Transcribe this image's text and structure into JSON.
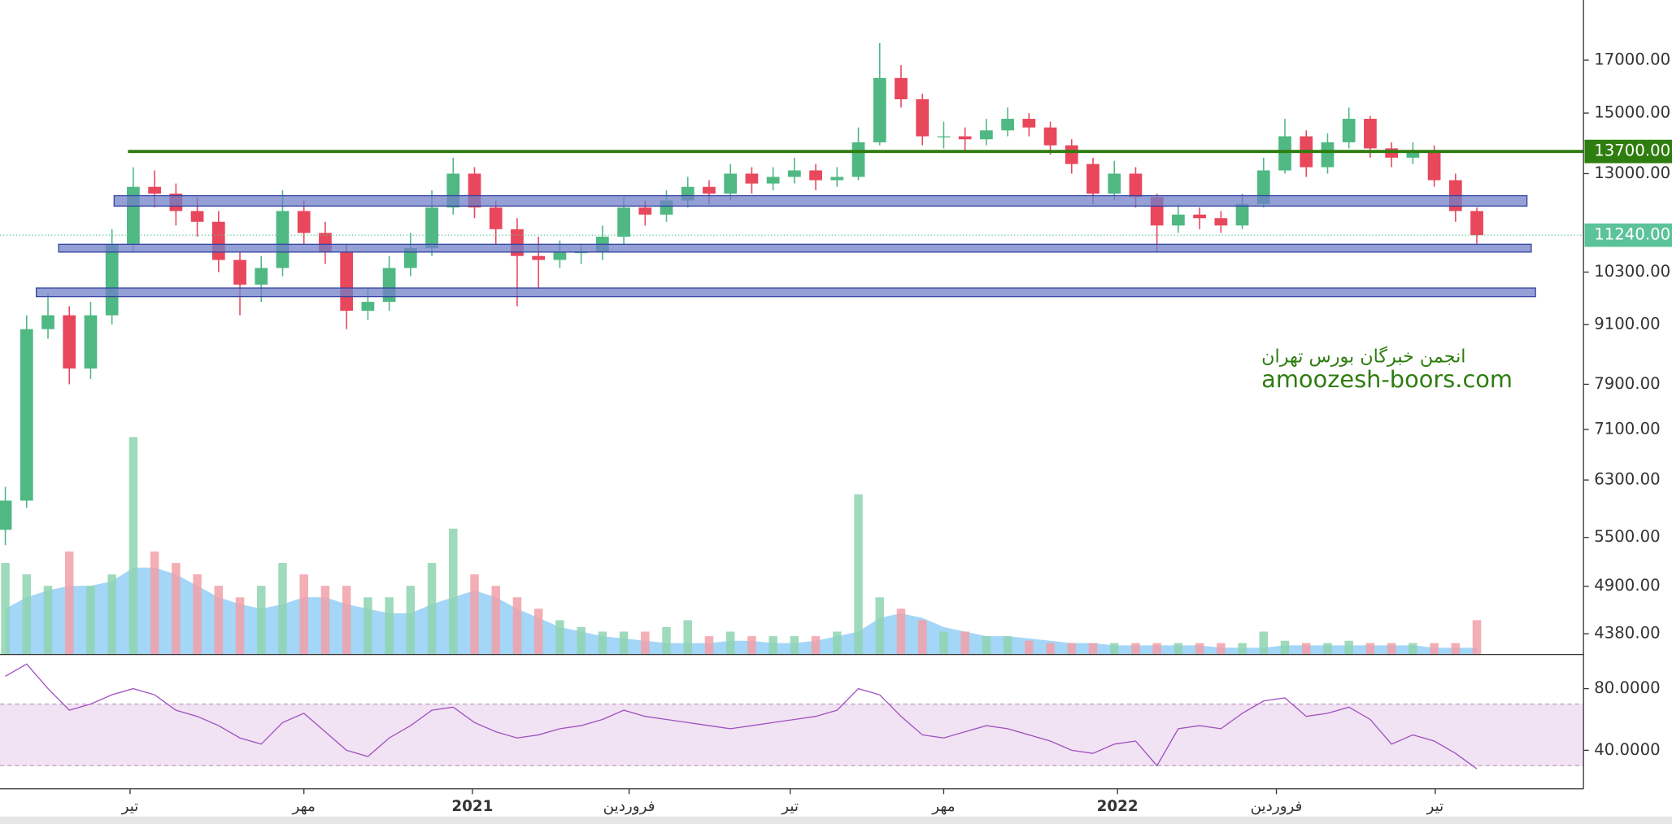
{
  "chart_data": [
    {
      "type": "candlestick",
      "log_scale": true,
      "up_color": "#4fb883",
      "down_color": "#e8475c",
      "volume_up_color": "#8fd4b0",
      "volume_down_color": "#f2a0a8",
      "volume_ma_color": "#5ab4f0",
      "open": [
        5600,
        6000,
        9000,
        9300,
        8200,
        9300,
        11000,
        12600,
        12400,
        11900,
        11600,
        10600,
        10000,
        10400,
        11900,
        11300,
        10800,
        9400,
        9600,
        10400,
        10900,
        12000,
        13000,
        12000,
        11400,
        10700,
        10600,
        10800,
        10800,
        11200,
        12000,
        11800,
        12200,
        12600,
        12400,
        13000,
        12700,
        12900,
        13100,
        12800,
        12900,
        14000,
        16300,
        15500,
        14200,
        14200,
        14100,
        14400,
        14800,
        14500,
        13900,
        13300,
        12400,
        13000,
        12300,
        11500,
        11800,
        11700,
        11500,
        12100,
        13100,
        14200,
        13200,
        14000,
        14800,
        13800,
        13500,
        13700,
        12800,
        11900
      ],
      "high": [
        6200,
        9300,
        9800,
        9500,
        9600,
        11400,
        13200,
        13100,
        12700,
        12300,
        11900,
        10800,
        10700,
        12500,
        12200,
        11600,
        11000,
        9900,
        10700,
        11300,
        12500,
        13500,
        13200,
        12200,
        11700,
        11200,
        11100,
        11000,
        11500,
        12300,
        12200,
        12500,
        12900,
        12800,
        13300,
        13200,
        13200,
        13500,
        13300,
        13200,
        14500,
        17700,
        16800,
        15700,
        14700,
        14500,
        14800,
        15200,
        15000,
        14700,
        14100,
        13500,
        13400,
        13200,
        12400,
        12100,
        12000,
        11900,
        12400,
        13500,
        14800,
        14400,
        14300,
        15200,
        14900,
        14000,
        14000,
        13900,
        13000,
        12000
      ],
      "low": [
        5400,
        5900,
        8800,
        7900,
        8000,
        9100,
        10800,
        12000,
        11500,
        11200,
        10300,
        9300,
        9600,
        10200,
        11000,
        10500,
        9000,
        9200,
        9400,
        10200,
        10700,
        11800,
        11700,
        11000,
        9500,
        9900,
        10400,
        10500,
        10600,
        11000,
        11500,
        11600,
        12000,
        12100,
        12200,
        12400,
        12500,
        12700,
        12500,
        12600,
        12800,
        13900,
        15200,
        13900,
        13800,
        13700,
        13900,
        14200,
        14200,
        13600,
        13000,
        12100,
        12200,
        12000,
        10800,
        11300,
        11400,
        11300,
        11400,
        12000,
        13000,
        12900,
        13000,
        13800,
        13500,
        13200,
        13300,
        12600,
        11600,
        11000
      ],
      "close": [
        6000,
        9000,
        9300,
        8200,
        9300,
        11000,
        12600,
        12400,
        11900,
        11600,
        10600,
        10000,
        10400,
        11900,
        11300,
        10800,
        9400,
        9600,
        10400,
        10900,
        12000,
        13000,
        12000,
        11400,
        10700,
        10600,
        10800,
        10800,
        11200,
        12000,
        11800,
        12200,
        12600,
        12400,
        13000,
        12700,
        12900,
        13100,
        12800,
        12900,
        14000,
        16300,
        15500,
        14200,
        14200,
        14100,
        14400,
        14800,
        14500,
        13900,
        13300,
        12400,
        13000,
        12300,
        11500,
        11800,
        11700,
        11500,
        12100,
        13100,
        14200,
        13200,
        14000,
        14800,
        13800,
        13500,
        13700,
        12800,
        11900,
        11240
      ],
      "volume": [
        40,
        35,
        30,
        45,
        30,
        35,
        95,
        45,
        40,
        35,
        30,
        25,
        30,
        40,
        35,
        30,
        30,
        25,
        25,
        30,
        40,
        55,
        35,
        30,
        25,
        20,
        15,
        12,
        10,
        10,
        10,
        12,
        15,
        8,
        10,
        8,
        8,
        8,
        8,
        10,
        70,
        25,
        20,
        15,
        10,
        10,
        8,
        8,
        6,
        5,
        5,
        5,
        5,
        5,
        5,
        5,
        5,
        5,
        5,
        10,
        6,
        5,
        5,
        6,
        5,
        5,
        5,
        5,
        5,
        15
      ],
      "volume_ma": [
        20,
        25,
        28,
        30,
        30,
        32,
        38,
        38,
        35,
        30,
        25,
        22,
        20,
        22,
        25,
        25,
        22,
        20,
        18,
        18,
        22,
        25,
        28,
        25,
        20,
        16,
        12,
        10,
        8,
        7,
        6,
        5,
        5,
        5,
        6,
        6,
        5,
        5,
        6,
        8,
        10,
        16,
        18,
        16,
        12,
        10,
        8,
        8,
        7,
        6,
        5,
        5,
        4,
        4,
        4,
        4,
        4,
        3,
        3,
        3,
        4,
        4,
        4,
        4,
        4,
        4,
        4,
        3,
        3,
        3
      ],
      "xlim": [
        -0.25,
        74
      ],
      "ylim": [
        4170,
        19600
      ],
      "yticks": [
        {
          "value": 17000,
          "label": "17000.00"
        },
        {
          "value": 15000,
          "label": "15000.00"
        },
        {
          "value": 13000,
          "label": "13000.00"
        },
        {
          "value": 10300,
          "label": "10300.00"
        },
        {
          "value": 9100,
          "label": "9100.00"
        },
        {
          "value": 7900,
          "label": "7900.00"
        },
        {
          "value": 7100,
          "label": "7100.00"
        },
        {
          "value": 6300,
          "label": "6300.00"
        },
        {
          "value": 5500,
          "label": "5500.00"
        },
        {
          "value": 4900,
          "label": "4900.00"
        },
        {
          "value": 4380,
          "label": "4380.00"
        }
      ],
      "zones": [
        {
          "low": 12040,
          "high": 12340,
          "x_start": 5.1,
          "x_end": 71.35
        },
        {
          "low": 10800,
          "high": 11000,
          "x_start": 2.5,
          "x_end": 71.55
        },
        {
          "low": 9720,
          "high": 9920,
          "x_start": 1.45,
          "x_end": 71.75
        }
      ],
      "zone_color": "#7080c8",
      "level": {
        "value": 13700,
        "label": "13700.00",
        "x_start": 5.75,
        "color": "#2e7d0f"
      },
      "price_line": {
        "value": 11240,
        "label": "11240.00",
        "color": "#5cc29a"
      },
      "annotations": [
        "انجمن خبرگان بورس تهران",
        "amoozesh-boors.com"
      ],
      "annotation_color": "#2e7d0f"
    },
    {
      "type": "line",
      "series": [
        {
          "color": "#a050c0",
          "values": [
            88,
            96,
            80,
            66,
            70,
            76,
            80,
            76,
            66,
            62,
            56,
            48,
            44,
            58,
            64,
            52,
            40,
            36,
            48,
            56,
            66,
            68,
            58,
            52,
            48,
            50,
            54,
            56,
            60,
            66,
            62,
            60,
            58,
            56,
            54,
            56,
            58,
            60,
            62,
            66,
            80,
            76,
            62,
            50,
            48,
            52,
            56,
            54,
            50,
            46,
            40,
            38,
            44,
            46,
            30,
            54,
            56,
            54,
            64,
            72,
            74,
            62,
            64,
            68,
            60,
            44,
            50,
            46,
            38,
            28
          ]
        }
      ],
      "band": [
        30,
        70
      ],
      "band_color": "#f1e3f3",
      "xlim": [
        -0.25,
        74
      ],
      "ylim": [
        15,
        98
      ],
      "yticks": [
        {
          "value": 80,
          "label": "80.0000"
        },
        {
          "value": 40,
          "label": "40.0000"
        }
      ],
      "xticks": [
        {
          "value": 5.85,
          "label": "تیر"
        },
        {
          "value": 14,
          "label": "مهر"
        },
        {
          "value": 21.9,
          "label": "2021"
        },
        {
          "value": 29.25,
          "label": "فروردین"
        },
        {
          "value": 36.8,
          "label": "تیر"
        },
        {
          "value": 44,
          "label": "مهر"
        },
        {
          "value": 52.15,
          "label": "2022"
        },
        {
          "value": 59.6,
          "label": "فروردین"
        },
        {
          "value": 67.05,
          "label": "تیر"
        }
      ]
    }
  ]
}
